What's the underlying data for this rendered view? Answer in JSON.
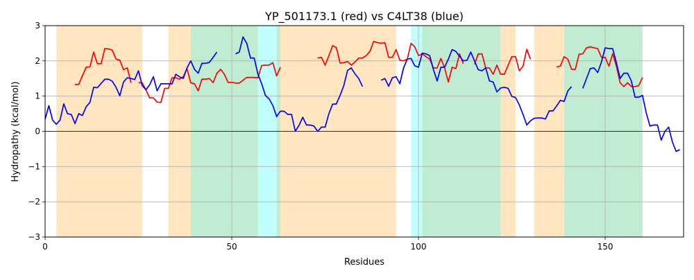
{
  "chart_data": {
    "type": "line",
    "title": "YP_501173.1 (red) vs C4LT38 (blue)",
    "xlabel": "Residues",
    "ylabel": "Hydropathy (kcal/mol)",
    "xlim": [
      0,
      171
    ],
    "ylim": [
      -3,
      3
    ],
    "xticks": [
      0,
      50,
      100,
      150
    ],
    "yticks": [
      -3,
      -2,
      -1,
      0,
      1,
      2,
      3
    ],
    "grid": true,
    "zero_line": true,
    "regions": [
      {
        "start": 3,
        "end": 26,
        "color": "#ffe6c1"
      },
      {
        "start": 33,
        "end": 39,
        "color": "#ffe6c1"
      },
      {
        "start": 39,
        "end": 57,
        "color": "#c0ecd1"
      },
      {
        "start": 57,
        "end": 62,
        "color": "#c1ffff"
      },
      {
        "start": 62,
        "end": 63,
        "color": "#c0ecd1"
      },
      {
        "start": 63,
        "end": 94,
        "color": "#ffe6c1"
      },
      {
        "start": 98,
        "end": 101,
        "color": "#c1ffff"
      },
      {
        "start": 101,
        "end": 122,
        "color": "#c0ecd1"
      },
      {
        "start": 122,
        "end": 126,
        "color": "#ffe6c1"
      },
      {
        "start": 131,
        "end": 139,
        "color": "#ffe6c1"
      },
      {
        "start": 139,
        "end": 160,
        "color": "#c0ecd1"
      }
    ],
    "series": [
      {
        "color": "#ff0000",
        "x_start": 8,
        "values": [
          1.33,
          1.33,
          1.58,
          1.82,
          1.83,
          2.25,
          1.92,
          1.92,
          2.35,
          2.34,
          2.3,
          2.05,
          2.02,
          1.75,
          1.8,
          1.38,
          null,
          1.38,
          1.38,
          1.18,
          0.95,
          0.95,
          0.83,
          0.82,
          1.22,
          1.22,
          1.52,
          1.52,
          1.48,
          1.55,
          1.78,
          1.38,
          1.35,
          1.15,
          1.48,
          1.48,
          1.5,
          1.38,
          1.65,
          1.76,
          1.62,
          1.39,
          1.39,
          1.37,
          1.37,
          1.45,
          1.53,
          1.53,
          1.53,
          1.52,
          1.87,
          1.88,
          1.88,
          1.95,
          1.57,
          1.82,
          null,
          null,
          null,
          null,
          null,
          null,
          null,
          null,
          null,
          2.08,
          2.1,
          1.88,
          2.15,
          2.43,
          2.38,
          1.94,
          1.95,
          1.98,
          1.88,
          1.97,
          2.08,
          2.08,
          2.15,
          2.27,
          2.55,
          2.52,
          2.5,
          2.52,
          2.1,
          2.1,
          2.32,
          2.02,
          2.0,
          2.05,
          2.5,
          2.4,
          2.15,
          2.2,
          2.12,
          2.05,
          1.8,
          1.8,
          2.07,
          1.8,
          1.4,
          1.82,
          1.78,
          2.2,
          1.92,
          null,
          null,
          1.9,
          2.2,
          2.2,
          1.8,
          1.8,
          1.62,
          1.88,
          1.62,
          1.62,
          1.88,
          2.12,
          2.12,
          1.72,
          1.85,
          2.33,
          2.05,
          null,
          null,
          null,
          null,
          null,
          null,
          1.83,
          1.85,
          2.12,
          2.05,
          1.76,
          1.76,
          2.19,
          2.2,
          2.37,
          2.4,
          2.37,
          2.35,
          2.1,
          2.1,
          1.85,
          2.2,
          1.85,
          1.38,
          1.27,
          1.38,
          1.27,
          1.27,
          1.3,
          1.53
        ]
      },
      {
        "color": "#0000ff",
        "x_start": 0,
        "values": [
          0.35,
          0.73,
          0.32,
          0.2,
          0.32,
          0.78,
          0.5,
          0.48,
          0.22,
          0.5,
          0.45,
          0.7,
          0.82,
          1.25,
          1.24,
          1.36,
          1.48,
          1.48,
          1.42,
          1.25,
          1.01,
          1.4,
          1.52,
          1.5,
          1.47,
          1.72,
          1.3,
          1.18,
          1.32,
          1.55,
          1.15,
          1.35,
          1.35,
          1.35,
          1.35,
          1.62,
          1.55,
          1.5,
          1.8,
          2.0,
          1.76,
          1.65,
          1.93,
          1.93,
          1.96,
          2.1,
          2.25,
          null,
          null,
          null,
          null,
          2.2,
          2.25,
          2.68,
          2.5,
          2.08,
          2.08,
          1.62,
          1.35,
          1.02,
          0.92,
          0.73,
          0.42,
          0.57,
          0.57,
          0.48,
          0.48,
          0.0,
          0.17,
          0.4,
          0.18,
          0.18,
          0.15,
          0.0,
          0.12,
          0.12,
          0.5,
          0.77,
          0.78,
          1.02,
          1.3,
          1.73,
          1.8,
          1.63,
          1.5,
          1.27,
          null,
          null,
          null,
          null,
          1.45,
          1.5,
          1.28,
          1.52,
          1.55,
          1.35,
          1.8,
          2.05,
          2.07,
          1.86,
          1.82,
          2.22,
          2.2,
          2.15,
          1.75,
          1.43,
          1.82,
          1.82,
          2.05,
          2.32,
          2.27,
          2.13,
          2.0,
          2.02,
          2.25,
          2.0,
          1.75,
          1.72,
          1.8,
          1.43,
          1.4,
          1.12,
          1.23,
          1.25,
          1.22,
          0.99,
          0.96,
          0.75,
          0.48,
          0.18,
          0.3,
          0.37,
          0.38,
          0.38,
          0.35,
          0.58,
          0.58,
          0.72,
          0.88,
          0.85,
          1.15,
          1.27,
          null,
          null,
          1.22,
          1.5,
          1.78,
          1.8,
          1.67,
          1.97,
          2.37,
          2.35,
          2.35,
          1.95,
          1.5,
          1.65,
          1.65,
          1.43,
          0.97,
          0.97,
          1.02,
          0.52,
          0.15,
          0.18,
          0.18,
          -0.25,
          0.0,
          0.12,
          -0.3,
          -0.57,
          -0.52
        ]
      }
    ]
  }
}
